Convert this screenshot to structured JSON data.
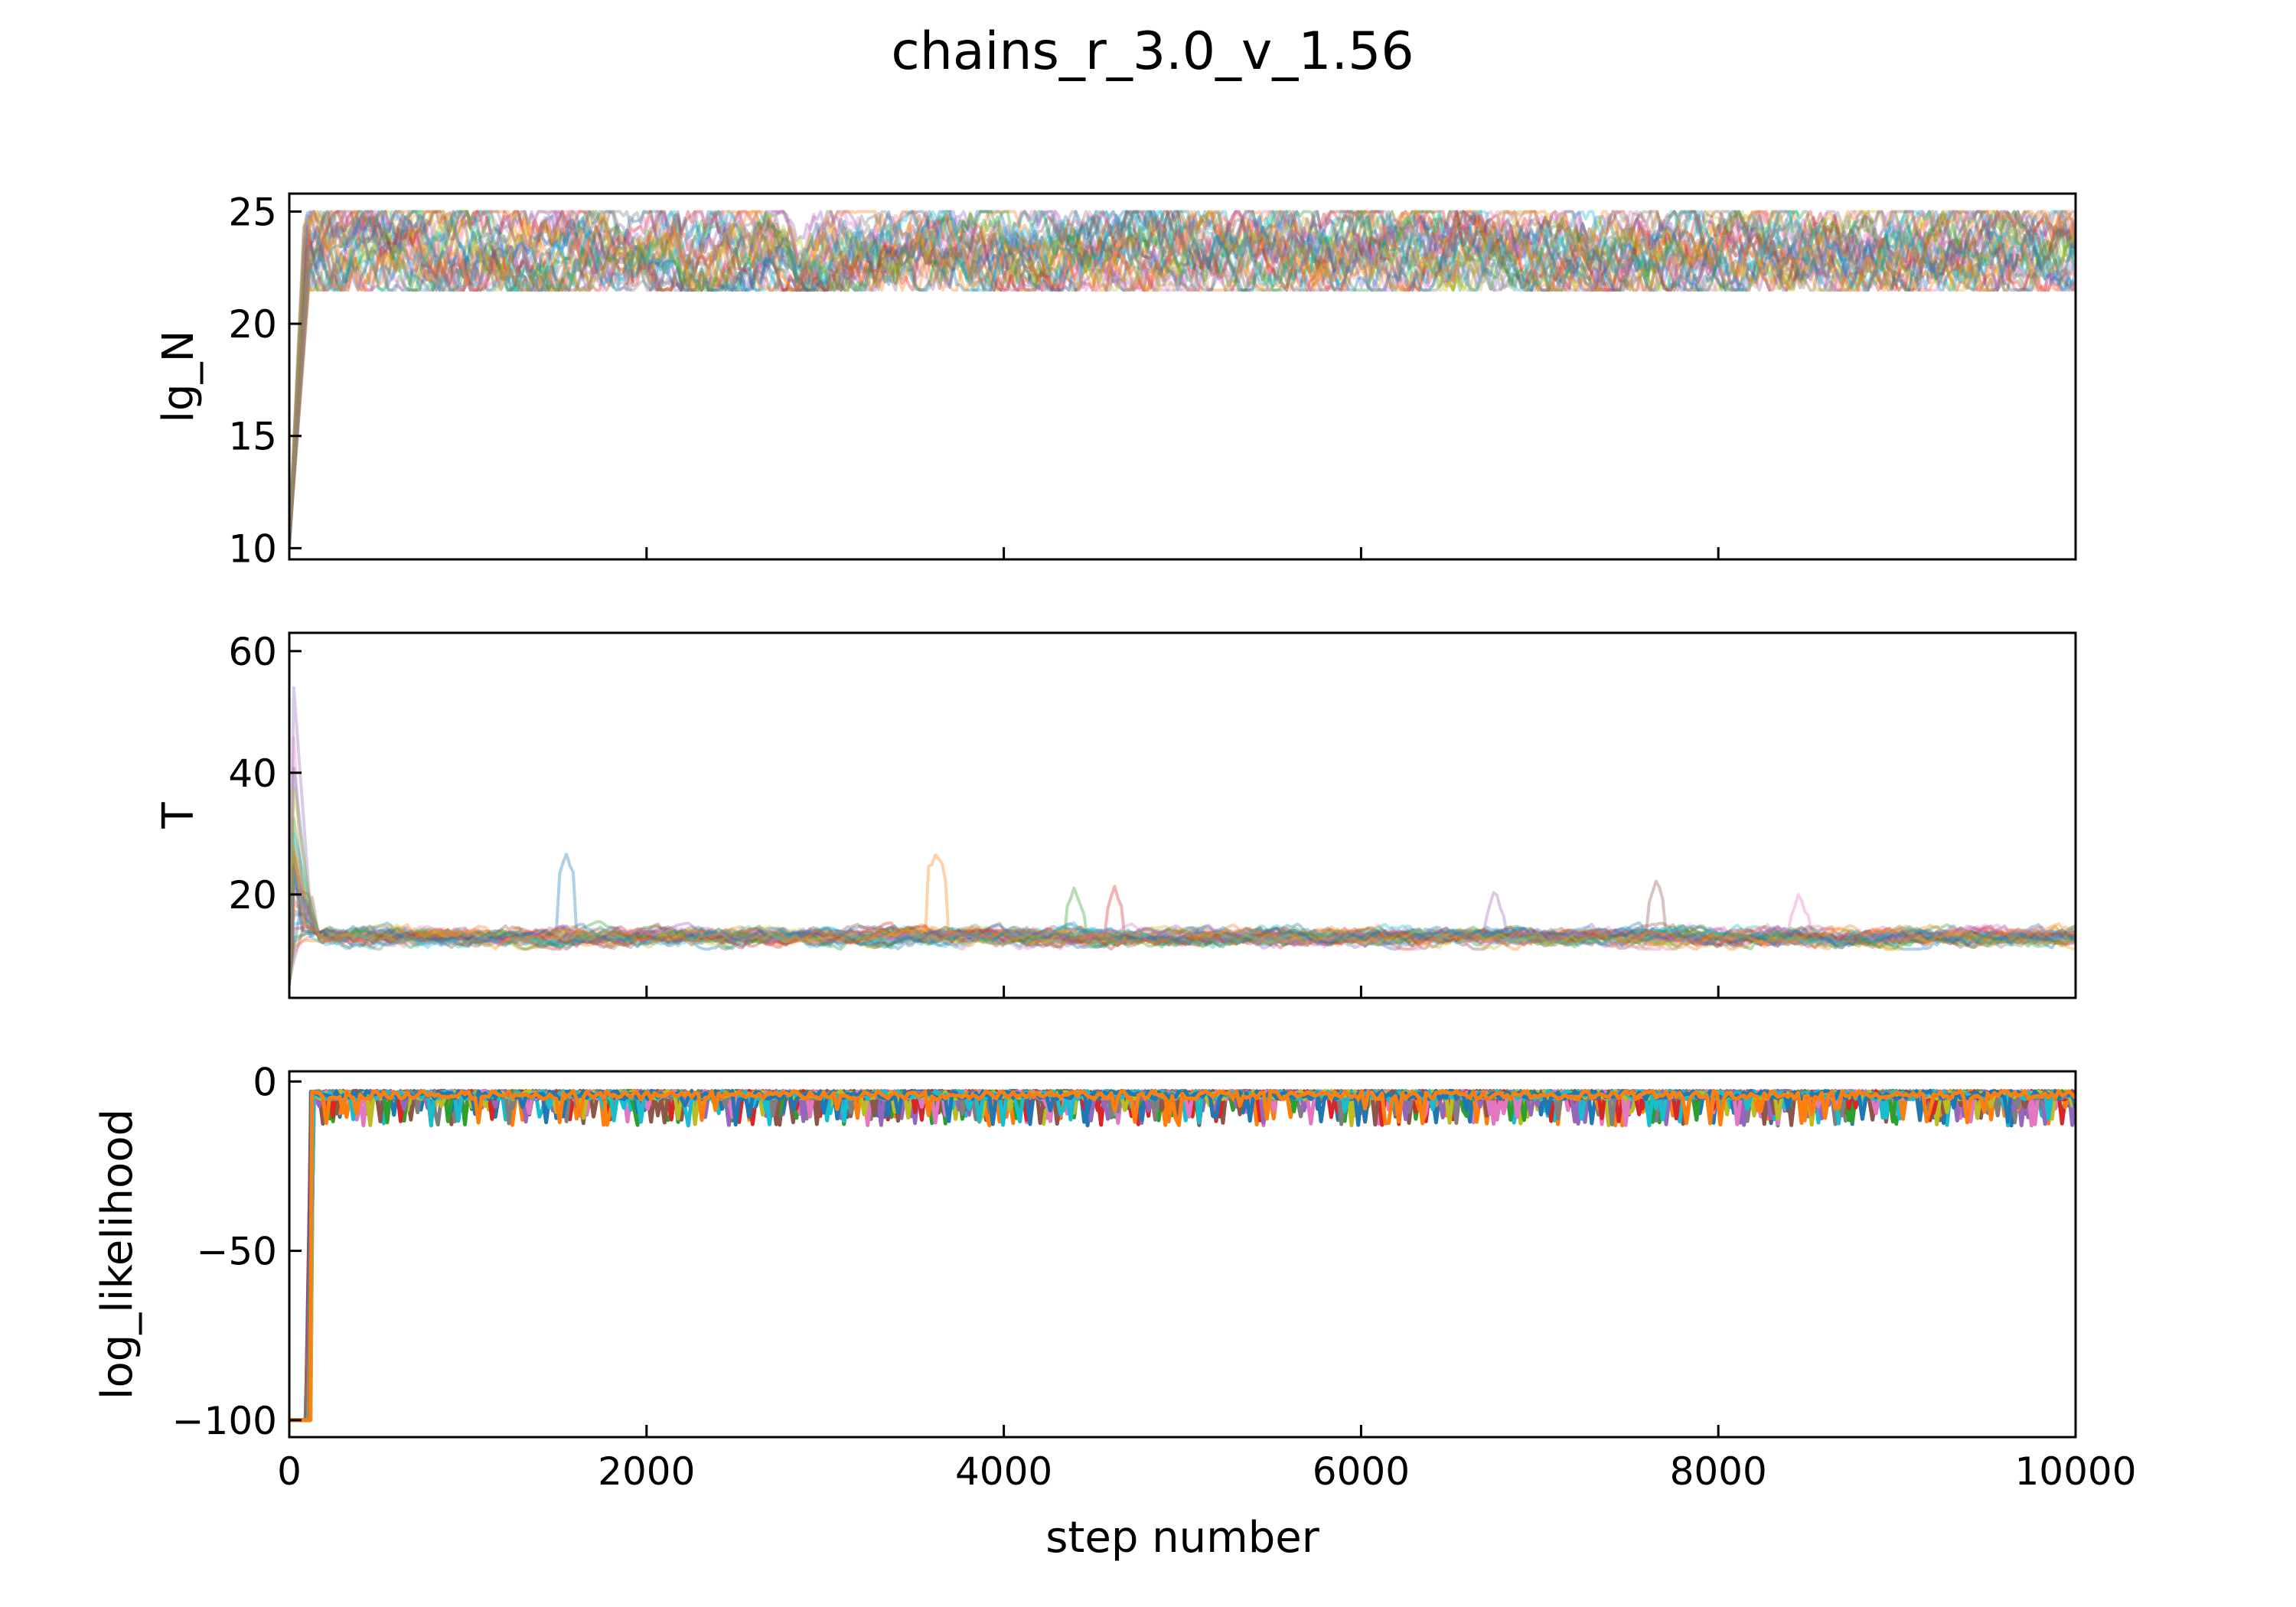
{
  "figure_title": "chains_r_3.0_v_1.56",
  "colors": [
    "#1f77b4",
    "#ff7f0e",
    "#2ca02c",
    "#d62728",
    "#9467bd",
    "#8c564b",
    "#e377c2",
    "#7f7f7f",
    "#bcbd22",
    "#17becf"
  ],
  "chart_data": [
    {
      "type": "line",
      "title": "",
      "xlabel": "",
      "ylabel": "lg_N",
      "xlim": [
        0,
        10000
      ],
      "ylim": [
        9.5,
        25.8
      ],
      "xticks": [
        0,
        2000,
        4000,
        6000,
        8000,
        10000
      ],
      "xtick_labels_visible": false,
      "yticks": [
        10,
        15,
        20,
        25
      ],
      "ytick_labels": [
        "10",
        "15",
        "20",
        "25"
      ],
      "grid": false,
      "series_style": {
        "alpha": 0.35,
        "count": 32
      },
      "series_summary": {
        "burn_in_start": 10,
        "burn_in_end_step": 100,
        "band_low": 21.5,
        "band_high": 25.0,
        "center": 23.2
      }
    },
    {
      "type": "line",
      "title": "",
      "xlabel": "",
      "ylabel": "T",
      "xlim": [
        0,
        10000
      ],
      "ylim": [
        3,
        63
      ],
      "xticks": [
        0,
        2000,
        4000,
        6000,
        8000,
        10000
      ],
      "xtick_labels_visible": false,
      "yticks": [
        20,
        40,
        60
      ],
      "ytick_labels": [
        "20",
        "40",
        "60"
      ],
      "grid": false,
      "series_style": {
        "alpha": 0.35,
        "count": 32
      },
      "series_summary": {
        "burn_in_peak": 57,
        "band_low": 11,
        "center": 13,
        "excursions": [
          {
            "step": 1550,
            "value": 27
          },
          {
            "step": 3620,
            "value": 28
          },
          {
            "step": 4400,
            "value": 22
          },
          {
            "step": 4620,
            "value": 22
          },
          {
            "step": 6750,
            "value": 21
          },
          {
            "step": 7650,
            "value": 23
          },
          {
            "step": 8450,
            "value": 21
          }
        ]
      }
    },
    {
      "type": "line",
      "title": "",
      "xlabel": "step number",
      "ylabel": "log_likelihood",
      "xlim": [
        0,
        10000
      ],
      "ylim": [
        -105,
        3
      ],
      "xticks": [
        0,
        2000,
        4000,
        6000,
        8000,
        10000
      ],
      "xtick_labels": [
        "0",
        "2000",
        "4000",
        "6000",
        "8000",
        "10000"
      ],
      "yticks": [
        0,
        -50,
        -100
      ],
      "ytick_labels": [
        "0",
        "−50",
        "−100"
      ],
      "grid": false,
      "series_style": {
        "alpha": 1.0,
        "count": 32
      },
      "series_summary": {
        "burn_in_start": -100,
        "burn_in_end_step": 100,
        "center": -4,
        "min_dips": -13
      }
    }
  ]
}
